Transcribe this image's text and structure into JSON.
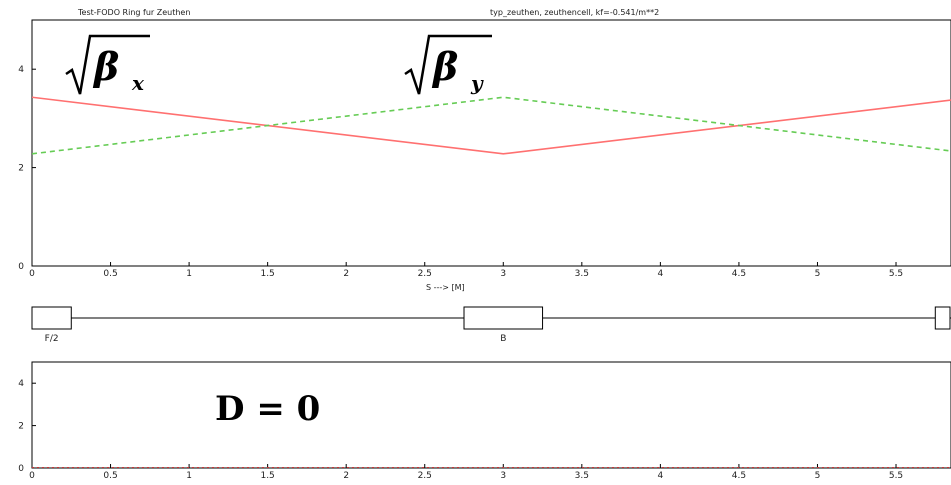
{
  "header": {
    "title_left": "Test-FODO Ring fur Zeuthen",
    "title_right": "typ_zeuthen, zeuthencell, kf=-0.541/m**2"
  },
  "overlays": {
    "beta_x_symbol": "β",
    "beta_x_sub": "x",
    "beta_y_symbol": "β",
    "beta_y_sub": "y",
    "dispersion_label": "D = 0"
  },
  "colors": {
    "beta_x": "#ff7070",
    "beta_y": "#66cc55",
    "dispersion": "#cc3333",
    "axis": "#000000"
  },
  "lattice": {
    "magnets": [
      {
        "label": "F/2",
        "s_start": 0.0,
        "s_end": 0.25
      },
      {
        "label": "B",
        "s_start": 2.75,
        "s_end": 3.25
      },
      {
        "label": "",
        "s_start": 5.75,
        "s_end": 6.0
      }
    ]
  },
  "chart_data": [
    {
      "type": "line",
      "title": "",
      "xlabel": "S ---> [M]",
      "ylabel": "",
      "xlim": [
        0,
        5.85
      ],
      "ylim": [
        0,
        5
      ],
      "x_ticks": [
        "0",
        "0.5",
        "1",
        "1.5",
        "2",
        "2.5",
        "3",
        "3.5",
        "4",
        "4.5",
        "5",
        "5.5"
      ],
      "y_ticks": [
        "0",
        "2",
        "4"
      ],
      "series": [
        {
          "name": "",
          "style": "solid",
          "x": [
            0,
            3,
            6
          ],
          "y": [
            3.43,
            2.28,
            3.43
          ]
        },
        {
          "name": "",
          "style": "dashed",
          "x": [
            0,
            3,
            6
          ],
          "y": [
            2.28,
            3.43,
            2.28
          ]
        }
      ]
    },
    {
      "type": "line",
      "title": "",
      "xlabel": "",
      "ylabel": "",
      "xlim": [
        0,
        5.85
      ],
      "ylim": [
        0,
        5
      ],
      "x_ticks": [
        "0",
        "0.5",
        "1",
        "1.5",
        "2",
        "2.5",
        "3",
        "3.5",
        "4",
        "4.5",
        "5",
        "5.5"
      ],
      "y_ticks": [
        "0",
        "2",
        "4"
      ],
      "series": [
        {
          "name": "",
          "style": "dotted",
          "x": [
            0,
            6
          ],
          "y": [
            0,
            0
          ]
        }
      ]
    }
  ]
}
